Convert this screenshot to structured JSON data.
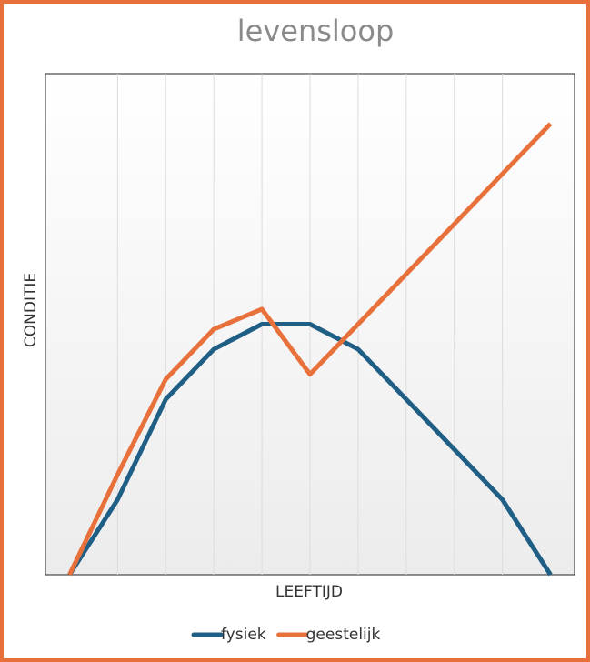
{
  "chart_data": {
    "type": "line",
    "title": "levensloop",
    "x_label": "LEEFTIJD",
    "y_label": "CONDITIE",
    "categories": [
      null,
      null,
      null,
      null,
      null,
      null,
      null,
      null,
      null,
      null,
      null
    ],
    "series": [
      {
        "name": "fysiek",
        "color": "#1f5f86",
        "values": [
          0,
          15,
          35,
          45,
          50,
          50,
          45,
          35,
          25,
          15,
          0
        ]
      },
      {
        "name": "geestelijk",
        "color": "#e8703a",
        "values": [
          0,
          20,
          39,
          49,
          53,
          40,
          50,
          60,
          70,
          80,
          90
        ]
      }
    ],
    "ylim": [
      0,
      100
    ],
    "grid": true,
    "legend": "bottom"
  }
}
